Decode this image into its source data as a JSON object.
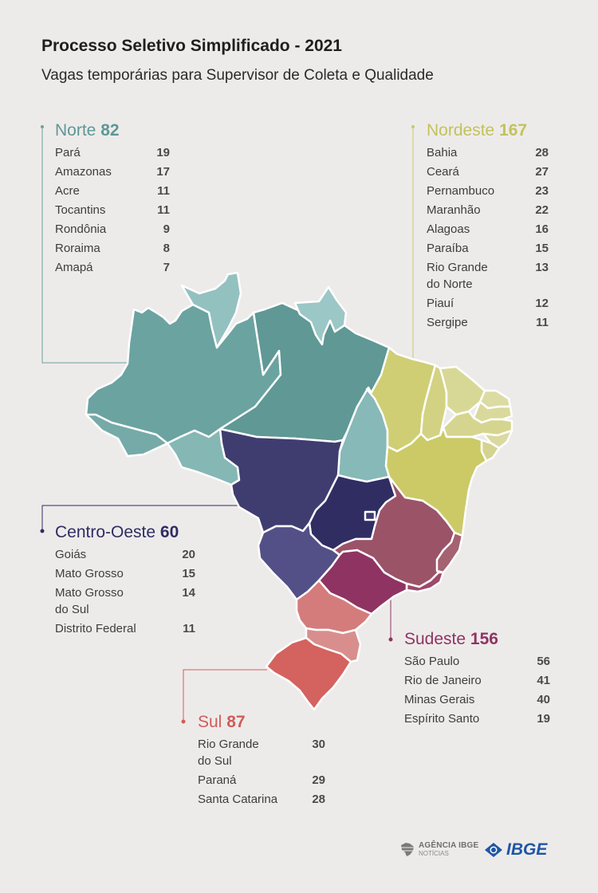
{
  "title": "Processo Seletivo Simplificado - 2021",
  "subtitle": "Vagas temporárias para Supervisor de Coleta e Qualidade",
  "colors": {
    "background": "#edebea",
    "norte": "#67a09e",
    "norte_light": "#8ebdbc",
    "nordeste": "#cccb6a",
    "nordeste_light": "#d9d898",
    "centro_oeste": "#3f3d6e",
    "centro_oeste_dark": "#2e2c60",
    "centro_oeste_light": "#54518a",
    "sudeste": "#8f3462",
    "sudeste_mg": "#9c5569",
    "sul": "#d46460",
    "sul_light": "#d98c8c",
    "ibge_blue": "#1f56a6"
  },
  "regions": {
    "norte": {
      "name": "Norte",
      "total": "82",
      "color": "#67a09e",
      "states": [
        {
          "name": "Pará",
          "value": "19"
        },
        {
          "name": "Amazonas",
          "value": "17"
        },
        {
          "name": "Acre",
          "value": "11"
        },
        {
          "name": "Tocantins",
          "value": "11"
        },
        {
          "name": "Rondônia",
          "value": "9"
        },
        {
          "name": "Roraima",
          "value": "8"
        },
        {
          "name": "Amapá",
          "value": "7"
        }
      ]
    },
    "nordeste": {
      "name": "Nordeste",
      "total": "167",
      "color": "#c3c25a",
      "states": [
        {
          "name": "Bahia",
          "value": "28"
        },
        {
          "name": "Ceará",
          "value": "27"
        },
        {
          "name": "Pernambuco",
          "value": "23"
        },
        {
          "name": "Maranhão",
          "value": "22"
        },
        {
          "name": "Alagoas",
          "value": "16"
        },
        {
          "name": "Paraíba",
          "value": "15"
        },
        {
          "name": "Rio Grande\ndo Norte",
          "value": "13"
        },
        {
          "name": "Piauí",
          "value": "12"
        },
        {
          "name": "Sergipe",
          "value": "11"
        }
      ]
    },
    "centro_oeste": {
      "name": "Centro-Oeste",
      "total": "60",
      "color": "#2f2d62",
      "states": [
        {
          "name": "Goiás",
          "value": "20"
        },
        {
          "name": "Mato Grosso",
          "value": "15"
        },
        {
          "name": "Mato Grosso\ndo Sul",
          "value": "14"
        },
        {
          "name": "Distrito Federal",
          "value": "11"
        }
      ]
    },
    "sudeste": {
      "name": "Sudeste",
      "total": "156",
      "color": "#8f3462",
      "states": [
        {
          "name": "São Paulo",
          "value": "56"
        },
        {
          "name": "Rio de Janeiro",
          "value": "41"
        },
        {
          "name": "Minas Gerais",
          "value": "40"
        },
        {
          "name": "Espírito Santo",
          "value": "19"
        }
      ]
    },
    "sul": {
      "name": "Sul",
      "total": "87",
      "color": "#d15c58",
      "states": [
        {
          "name": "Rio Grande\ndo Sul",
          "value": "30"
        },
        {
          "name": "Paraná",
          "value": "29"
        },
        {
          "name": "Santa Catarina",
          "value": "28"
        }
      ]
    }
  },
  "logos": {
    "agencia_line1": "AGÊNCIA IBGE",
    "agencia_line2": "NOTÍCIAS",
    "ibge": "IBGE",
    "agencia_icon": "brazil-map-icon",
    "ibge_icon": "ibge-flag-icon"
  }
}
